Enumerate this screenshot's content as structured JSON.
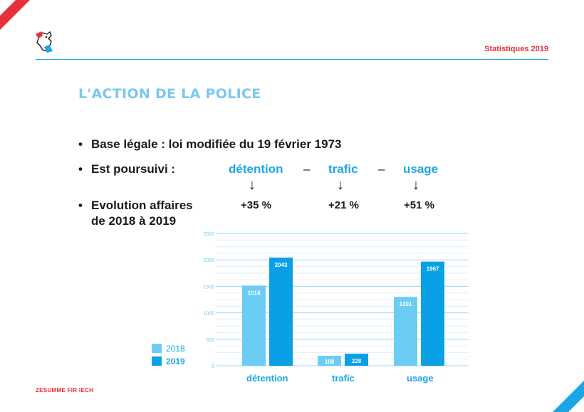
{
  "header": {
    "right_label": "Statistiques 2019"
  },
  "title": "L'ACTION DE LA POLICE",
  "bullets": {
    "legal": "Base légale : loi modifiée du 19 février 1973",
    "pursued_label": "Est poursuivi :",
    "evolution_line1": "Evolution affaires",
    "evolution_line2": "de 2018 à 2019"
  },
  "offenses": [
    {
      "name": "détention",
      "change": "+35 %"
    },
    {
      "name": "trafic",
      "change": "+21 %"
    },
    {
      "name": "usage",
      "change": "+51 %"
    }
  ],
  "separators": [
    "–",
    "–"
  ],
  "arrow_glyph": "↓",
  "footer": "ZESUMME FIR IECH",
  "colors": {
    "series2018": "#6ccdf4",
    "series2019": "#0aa0e6",
    "accent_red": "#e8303a",
    "accent_blue": "#1ca6e6"
  },
  "chart_data": {
    "type": "bar",
    "categories": [
      "détention",
      "trafic",
      "usage"
    ],
    "series": [
      {
        "name": "2018",
        "values": [
          1514,
          188,
          1301
        ]
      },
      {
        "name": "2019",
        "values": [
          2043,
          228,
          1967
        ]
      }
    ],
    "ylim": [
      0,
      2500
    ],
    "yticks": [
      "0",
      "500",
      "1000",
      "1500",
      "2000",
      "2500"
    ],
    "legend_position": "left",
    "grid": true
  }
}
